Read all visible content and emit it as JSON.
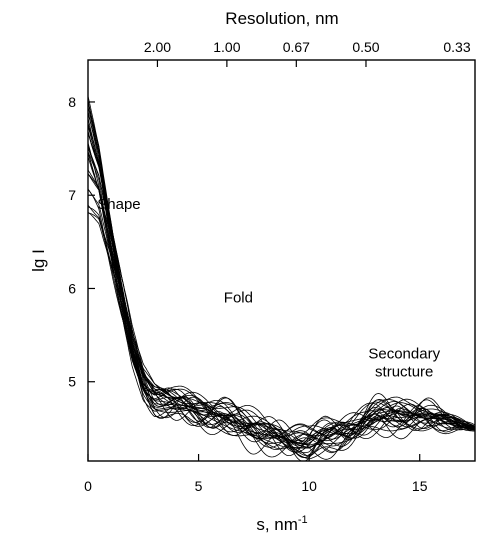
{
  "chart_data": {
    "type": "line",
    "title": "",
    "xlabel": "s, nm",
    "xlabel_superscript": "-1",
    "ylabel": "lg I",
    "x2label": "Resolution, nm",
    "xlim": [
      0,
      17.5
    ],
    "ylim": [
      4.15,
      8.45
    ],
    "grid": false,
    "x_ticks": [
      0,
      5,
      10,
      15
    ],
    "x_tick_labels": [
      "0",
      "5",
      "10",
      "15"
    ],
    "y_ticks": [
      5,
      6,
      7,
      8
    ],
    "y_tick_labels": [
      "5",
      "6",
      "7",
      "8"
    ],
    "top_ticks": [
      3.14,
      6.28,
      9.42,
      12.57,
      18.85
    ],
    "top_tick_labels": [
      "2.00",
      "1.00",
      "0.67",
      "0.50",
      "0.33"
    ],
    "annotations": [
      {
        "text": [
          "Shape"
        ],
        "x": 1.4,
        "y": 6.85
      },
      {
        "text": [
          "Fold"
        ],
        "x": 6.8,
        "y": 5.85
      },
      {
        "text": [
          "Secondary",
          "structure"
        ],
        "x": 14.3,
        "y": 5.25
      }
    ],
    "representative_profile": {
      "x": [
        0,
        0.5,
        1,
        1.5,
        2,
        2.5,
        3,
        4,
        5,
        6,
        7,
        8,
        9,
        10,
        11,
        12,
        13,
        14,
        15,
        16,
        17,
        17.5
      ],
      "y": [
        7.4,
        7.1,
        6.5,
        5.9,
        5.35,
        5.0,
        4.85,
        4.75,
        4.7,
        4.65,
        4.55,
        4.45,
        4.38,
        4.35,
        4.42,
        4.52,
        4.62,
        4.66,
        4.64,
        4.6,
        4.53,
        4.5
      ]
    },
    "overlay_count": 30,
    "overlay_y0_range": [
      6.8,
      8.3
    ]
  }
}
